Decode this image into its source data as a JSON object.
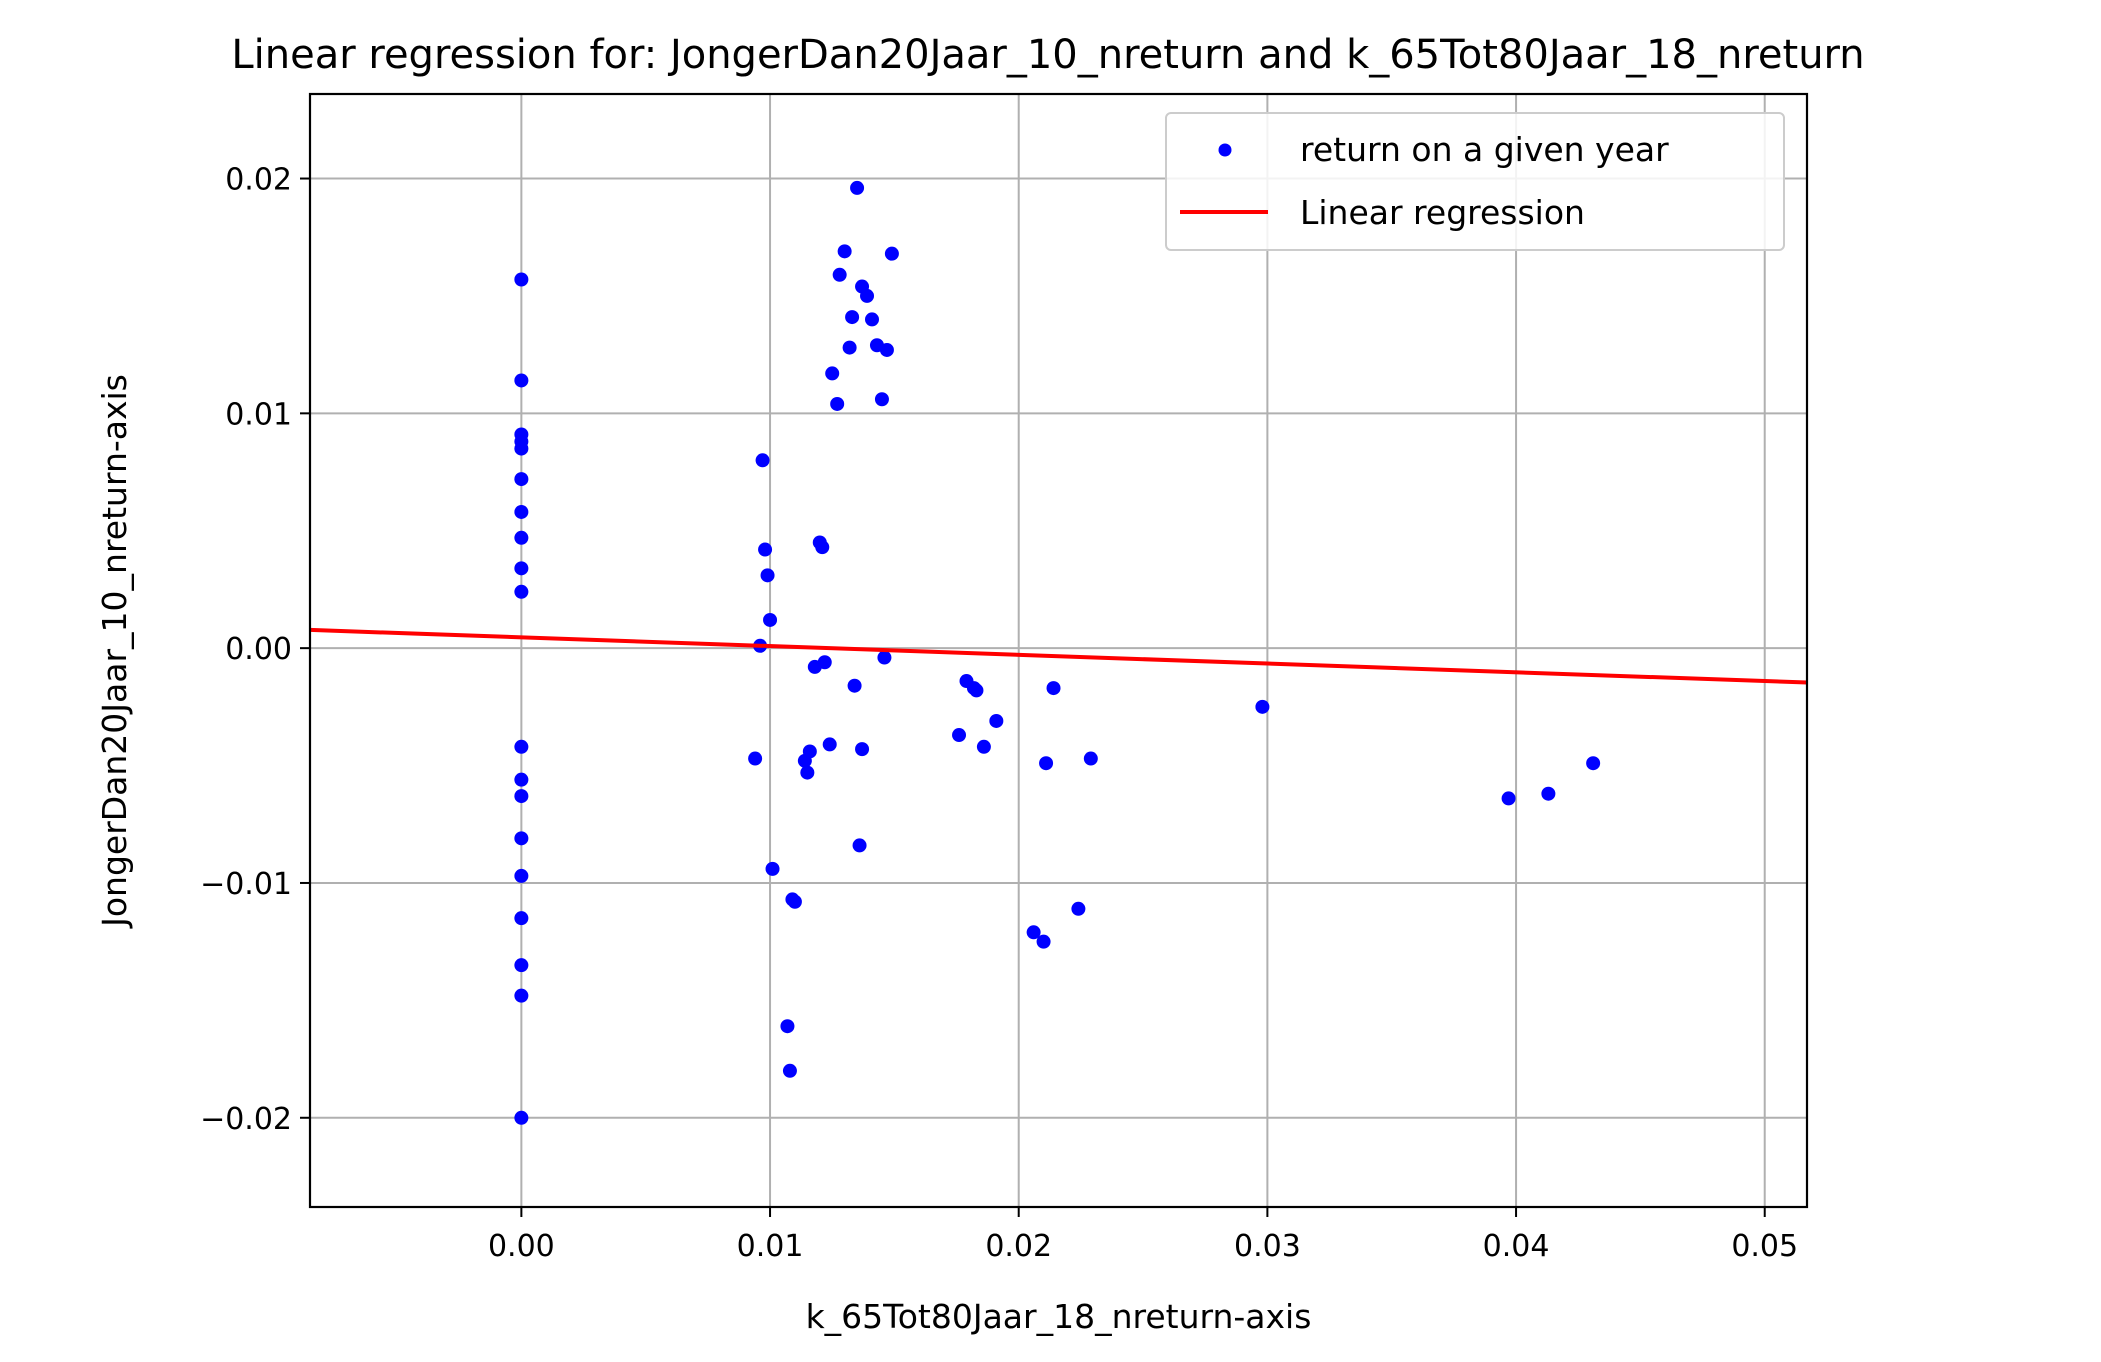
{
  "chart_data": {
    "type": "scatter",
    "title": "Linear regression for: JongerDan20Jaar_10_nreturn and k_65Tot80Jaar_18_nreturn",
    "xlabel": "k_65Tot80Jaar_18_nreturn-axis",
    "ylabel": "JongerDan20Jaar_10_nreturn-axis",
    "xlim": [
      -0.0085,
      0.0517
    ],
    "ylim": [
      -0.0238,
      0.0236
    ],
    "x_ticks": [
      0.0,
      0.01,
      0.02,
      0.03,
      0.04,
      0.05
    ],
    "x_tick_labels": [
      "0.00",
      "0.01",
      "0.02",
      "0.03",
      "0.04",
      "0.05"
    ],
    "y_ticks": [
      -0.02,
      -0.01,
      0.0,
      0.01,
      0.02
    ],
    "y_tick_labels": [
      "−0.02",
      "−0.01",
      "0.00",
      "0.01",
      "0.02"
    ],
    "grid": true,
    "legend_position": "top-right",
    "series": [
      {
        "name": "return on a given year",
        "kind": "scatter",
        "color": "#0000ff",
        "points": [
          [
            0.0,
            0.0157
          ],
          [
            0.0,
            0.0114
          ],
          [
            0.0,
            0.0091
          ],
          [
            0.0,
            0.0088
          ],
          [
            0.0,
            0.0085
          ],
          [
            0.0,
            0.0072
          ],
          [
            0.0,
            0.0058
          ],
          [
            0.0,
            0.0047
          ],
          [
            0.0,
            0.0034
          ],
          [
            0.0,
            0.0024
          ],
          [
            0.0,
            -0.0042
          ],
          [
            0.0,
            -0.0056
          ],
          [
            0.0,
            -0.0063
          ],
          [
            0.0,
            -0.0081
          ],
          [
            0.0,
            -0.0097
          ],
          [
            0.0,
            -0.0115
          ],
          [
            0.0,
            -0.0135
          ],
          [
            0.0,
            -0.0148
          ],
          [
            0.0,
            -0.02
          ],
          [
            0.0097,
            0.008
          ],
          [
            0.0098,
            0.0042
          ],
          [
            0.0099,
            0.0031
          ],
          [
            0.01,
            0.0012
          ],
          [
            0.0096,
            0.0001
          ],
          [
            0.0094,
            -0.0047
          ],
          [
            0.0101,
            -0.0094
          ],
          [
            0.0109,
            -0.0107
          ],
          [
            0.011,
            -0.0108
          ],
          [
            0.0107,
            -0.0161
          ],
          [
            0.0108,
            -0.018
          ],
          [
            0.0114,
            -0.0048
          ],
          [
            0.0115,
            -0.0053
          ],
          [
            0.0116,
            -0.0044
          ],
          [
            0.0118,
            -0.0008
          ],
          [
            0.012,
            0.0045
          ],
          [
            0.0121,
            0.0043
          ],
          [
            0.0122,
            -0.0006
          ],
          [
            0.0124,
            -0.0041
          ],
          [
            0.0125,
            0.0117
          ],
          [
            0.0127,
            0.0104
          ],
          [
            0.0128,
            0.0159
          ],
          [
            0.013,
            0.0169
          ],
          [
            0.0132,
            0.0128
          ],
          [
            0.0133,
            0.0141
          ],
          [
            0.0134,
            -0.0016
          ],
          [
            0.0135,
            0.0196
          ],
          [
            0.0137,
            0.0154
          ],
          [
            0.0139,
            0.015
          ],
          [
            0.0141,
            0.014
          ],
          [
            0.0143,
            0.0129
          ],
          [
            0.0145,
            0.0106
          ],
          [
            0.0146,
            -0.0004
          ],
          [
            0.0147,
            0.0127
          ],
          [
            0.0149,
            0.0168
          ],
          [
            0.0137,
            -0.0043
          ],
          [
            0.0136,
            -0.0084
          ],
          [
            0.0176,
            -0.0037
          ],
          [
            0.0179,
            -0.0014
          ],
          [
            0.0182,
            -0.0017
          ],
          [
            0.0183,
            -0.0018
          ],
          [
            0.0186,
            -0.0042
          ],
          [
            0.0191,
            -0.0031
          ],
          [
            0.0206,
            -0.0121
          ],
          [
            0.021,
            -0.0125
          ],
          [
            0.0211,
            -0.0049
          ],
          [
            0.0214,
            -0.0017
          ],
          [
            0.0224,
            -0.0111
          ],
          [
            0.0229,
            -0.0047
          ],
          [
            0.0298,
            -0.0025
          ],
          [
            0.0397,
            -0.0064
          ],
          [
            0.0413,
            -0.0062
          ],
          [
            0.0431,
            -0.0049
          ]
        ]
      },
      {
        "name": "Linear regression",
        "kind": "line",
        "color": "#ff0000",
        "slope": -0.0372,
        "intercept": 0.00046
      }
    ]
  }
}
